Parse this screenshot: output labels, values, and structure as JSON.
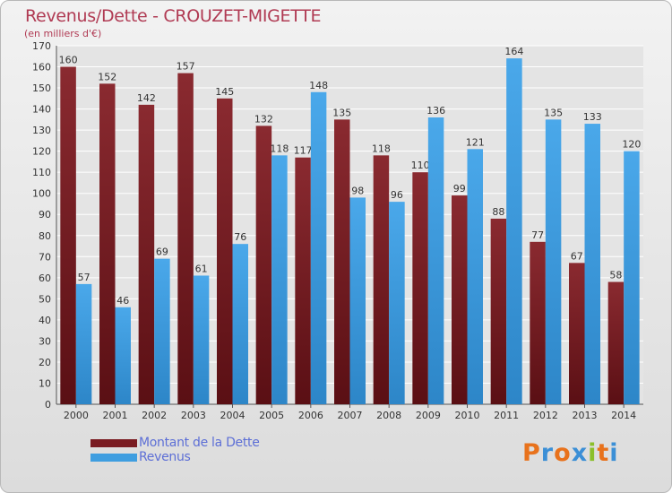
{
  "header": {
    "title": "Revenus/Dette - CROUZET-MIGETTE",
    "subtitle": "(en milliers d'€)"
  },
  "colors": {
    "dette": "#7a1c22",
    "revenus": "#3f9ee0",
    "title": "#b03a53",
    "legend_text": "#5d6fd6"
  },
  "legend": {
    "items": [
      {
        "label": "Montant de la Dette",
        "color": "#7a1c22"
      },
      {
        "label": "Revenus",
        "color": "#3f9ee0"
      }
    ]
  },
  "logo": {
    "text": "Proxiti"
  },
  "chart_data": {
    "type": "bar",
    "categories": [
      "2000",
      "2001",
      "2002",
      "2003",
      "2004",
      "2005",
      "2006",
      "2007",
      "2008",
      "2009",
      "2010",
      "2011",
      "2012",
      "2013",
      "2014"
    ],
    "series": [
      {
        "name": "Montant de la Dette",
        "values": [
          160,
          152,
          142,
          157,
          145,
          132,
          117,
          135,
          118,
          110,
          99,
          88,
          77,
          67,
          58
        ]
      },
      {
        "name": "Revenus",
        "values": [
          57,
          46,
          69,
          61,
          76,
          118,
          148,
          98,
          96,
          136,
          121,
          164,
          135,
          133,
          120
        ]
      }
    ],
    "title": "Revenus/Dette - CROUZET-MIGETTE",
    "ylabel": "(en milliers d'€)",
    "ylim": [
      0,
      170
    ],
    "yticks": [
      0,
      10,
      20,
      30,
      40,
      50,
      60,
      70,
      80,
      90,
      100,
      110,
      120,
      130,
      140,
      150,
      160,
      170
    ],
    "grid": true,
    "legend_position": "bottom-left"
  }
}
